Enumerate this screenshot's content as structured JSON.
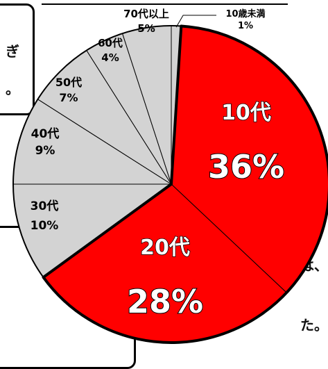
{
  "frames": {
    "top_fragment_1": "ぎ",
    "top_fragment_2": "。",
    "bottom_fragment_1": "は、",
    "bottom_fragment_2": "た。"
  },
  "chart_data": {
    "type": "pie",
    "start_angle_deg": -90,
    "direction": "clockwise",
    "slices": [
      {
        "label": "10歳未満",
        "value": 1,
        "pct": "1%",
        "color": "#d3d3d3",
        "highlight": false
      },
      {
        "label": "10代",
        "value": 36,
        "pct": "36%",
        "color": "#ff0000",
        "highlight": true
      },
      {
        "label": "20代",
        "value": 28,
        "pct": "28%",
        "color": "#ff0000",
        "highlight": true
      },
      {
        "label": "30代",
        "value": 10,
        "pct": "10%",
        "color": "#d3d3d3",
        "highlight": false
      },
      {
        "label": "40代",
        "value": 9,
        "pct": "9%",
        "color": "#d3d3d3",
        "highlight": false
      },
      {
        "label": "50代",
        "value": 7,
        "pct": "7%",
        "color": "#d3d3d3",
        "highlight": false
      },
      {
        "label": "60代",
        "value": 4,
        "pct": "4%",
        "color": "#d3d3d3",
        "highlight": false
      },
      {
        "label": "70代以上",
        "value": 5,
        "pct": "5%",
        "color": "#d3d3d3",
        "highlight": false
      }
    ]
  }
}
